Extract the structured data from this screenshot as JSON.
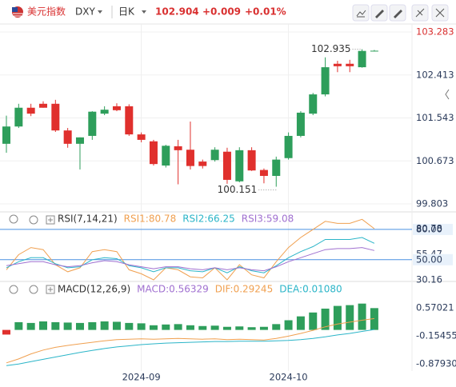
{
  "header": {
    "name": "美元指数",
    "symbol": "DXY",
    "period": "日K",
    "change": "+0.009",
    "change_pct": "+0.01%"
  },
  "chart_data": [
    {
      "type": "candlestick",
      "up_color": "#2e9e5b",
      "down_color": "#e0302d",
      "categories": [
        null,
        null,
        null,
        null,
        null,
        null,
        null,
        null,
        null,
        null,
        null,
        "2024-09",
        null,
        null,
        null,
        null,
        null,
        null,
        null,
        null,
        null,
        null,
        null,
        "2024-10",
        null,
        null,
        null,
        null,
        null,
        null,
        null
      ],
      "candles": [
        {
          "open": 101.02,
          "high": 101.59,
          "low": 100.84,
          "close": 101.37
        },
        {
          "open": 101.37,
          "high": 101.83,
          "low": 101.34,
          "close": 101.75
        },
        {
          "open": 101.75,
          "high": 101.83,
          "low": 101.58,
          "close": 101.63
        },
        {
          "open": 101.83,
          "high": 101.88,
          "low": 101.75,
          "close": 101.75
        },
        {
          "open": 101.83,
          "high": 101.91,
          "low": 101.26,
          "close": 101.29
        },
        {
          "open": 101.29,
          "high": 101.34,
          "low": 100.94,
          "close": 101.02
        },
        {
          "open": 101.02,
          "high": 101.15,
          "low": 100.5,
          "close": 101.15
        },
        {
          "open": 101.18,
          "high": 101.68,
          "low": 101.1,
          "close": 101.67
        },
        {
          "open": 101.63,
          "high": 101.78,
          "low": 101.6,
          "close": 101.71
        },
        {
          "open": 101.78,
          "high": 101.84,
          "low": 101.68,
          "close": 101.7
        },
        {
          "open": 101.78,
          "high": 101.82,
          "low": 101.18,
          "close": 101.21
        },
        {
          "open": 101.21,
          "high": 101.25,
          "low": 101.05,
          "close": 101.1
        },
        {
          "open": 101.07,
          "high": 101.1,
          "low": 100.58,
          "close": 100.61
        },
        {
          "open": 100.58,
          "high": 101.0,
          "low": 100.54,
          "close": 100.98
        },
        {
          "open": 100.97,
          "high": 101.1,
          "low": 100.2,
          "close": 100.89
        },
        {
          "open": 100.9,
          "high": 101.47,
          "low": 100.5,
          "close": 100.57
        },
        {
          "open": 100.66,
          "high": 100.7,
          "low": 100.52,
          "close": 100.57
        },
        {
          "open": 100.69,
          "high": 100.95,
          "low": 100.66,
          "close": 100.9
        },
        {
          "open": 100.86,
          "high": 100.94,
          "low": 100.21,
          "close": 100.29
        },
        {
          "open": 100.26,
          "high": 100.95,
          "low": 100.24,
          "close": 100.89
        },
        {
          "open": 100.89,
          "high": 100.95,
          "low": 100.47,
          "close": 100.48
        },
        {
          "open": 100.49,
          "high": 100.52,
          "low": 100.22,
          "close": 100.37
        },
        {
          "open": 100.37,
          "high": 100.76,
          "low": 100.151,
          "close": 100.7
        },
        {
          "open": 100.73,
          "high": 101.25,
          "low": 100.7,
          "close": 101.18
        },
        {
          "open": 101.18,
          "high": 101.68,
          "low": 101.15,
          "close": 101.65
        },
        {
          "open": 101.63,
          "high": 102.05,
          "low": 101.6,
          "close": 102.02
        },
        {
          "open": 102.02,
          "high": 102.77,
          "low": 101.98,
          "close": 102.57
        },
        {
          "open": 102.64,
          "high": 102.7,
          "low": 102.47,
          "close": 102.59
        },
        {
          "open": 102.64,
          "high": 102.72,
          "low": 102.47,
          "close": 102.59
        },
        {
          "open": 102.57,
          "high": 102.935,
          "low": 102.56,
          "close": 102.9
        },
        {
          "open": 102.9,
          "high": 102.92,
          "low": 102.89,
          "close": 102.904
        }
      ],
      "ylim": [
        99.69,
        103.413
      ],
      "yticks": [
        103.283,
        102.413,
        101.543,
        100.673,
        99.803
      ],
      "grid": true
    },
    {
      "type": "line",
      "title": "RSI(7,14,21)",
      "ylim": [
        30,
        85.5
      ],
      "yticks": [
        {
          "value": 80,
          "label": "80.00",
          "line": true
        },
        80.78,
        55.47,
        {
          "value": 50,
          "label": "50.00",
          "line": true
        },
        30.16
      ],
      "series": [
        {
          "name": "RSI1:80.78",
          "color": "#f0a050",
          "values": [
            40,
            55,
            62,
            60,
            45,
            38,
            42,
            58,
            60,
            58,
            40,
            36,
            30,
            42,
            40,
            33,
            32,
            42,
            30,
            45,
            35,
            32,
            48,
            62,
            72,
            80,
            88,
            86,
            86,
            90,
            80.78
          ]
        },
        {
          "name": "RSI2:66.25",
          "color": "#2bb5c8",
          "values": [
            42,
            48,
            52,
            52,
            46,
            42,
            43,
            50,
            52,
            51,
            44,
            42,
            38,
            42,
            42,
            39,
            38,
            42,
            37,
            43,
            39,
            37,
            44,
            52,
            58,
            63,
            70,
            70,
            70,
            72,
            66.25
          ]
        },
        {
          "name": "RSI3:59.08",
          "color": "#a070d0",
          "values": [
            44,
            46,
            48,
            48,
            45,
            43,
            44,
            47,
            49,
            48,
            45,
            43,
            41,
            43,
            43,
            41,
            40,
            42,
            40,
            42,
            40,
            39,
            43,
            48,
            52,
            56,
            60,
            61,
            61,
            62,
            59.08
          ]
        }
      ]
    },
    {
      "type": "bar",
      "title": "MACD(12,26,9)",
      "ylim": [
        -1.02,
        0.88
      ],
      "yticks": [
        0.57021,
        -0.15455,
        {
          "value": -0.8793,
          "label": "-0.87930"
        }
      ],
      "series": [
        {
          "name": "MACD:0.56329",
          "kind": "bar",
          "color": "#a070d0",
          "up_color": "#2e9e5b",
          "down_color": "#e0302d",
          "values": [
            -0.12,
            0.2,
            0.18,
            0.22,
            0.2,
            0.19,
            0.18,
            0.2,
            0.22,
            0.21,
            0.18,
            0.17,
            0.12,
            0.14,
            0.15,
            0.12,
            0.1,
            0.11,
            0.08,
            0.09,
            0.07,
            0.08,
            0.15,
            0.25,
            0.35,
            0.45,
            0.55,
            0.62,
            0.64,
            0.68,
            0.56329
          ]
        },
        {
          "name": "DIF:0.29245",
          "kind": "line",
          "color": "#f0a050",
          "values": [
            -0.85,
            -0.75,
            -0.62,
            -0.52,
            -0.45,
            -0.4,
            -0.36,
            -0.32,
            -0.28,
            -0.25,
            -0.24,
            -0.23,
            -0.24,
            -0.23,
            -0.22,
            -0.23,
            -0.24,
            -0.23,
            -0.25,
            -0.24,
            -0.25,
            -0.26,
            -0.22,
            -0.16,
            -0.09,
            -0.01,
            0.08,
            0.15,
            0.2,
            0.25,
            0.29245
          ]
        },
        {
          "name": "DEA:0.01080",
          "kind": "line",
          "color": "#2bb5c8",
          "values": [
            -0.92,
            -0.88,
            -0.82,
            -0.76,
            -0.7,
            -0.64,
            -0.58,
            -0.53,
            -0.48,
            -0.44,
            -0.41,
            -0.38,
            -0.36,
            -0.34,
            -0.33,
            -0.32,
            -0.31,
            -0.3,
            -0.3,
            -0.29,
            -0.29,
            -0.29,
            -0.28,
            -0.27,
            -0.25,
            -0.22,
            -0.18,
            -0.13,
            -0.09,
            -0.04,
            0.0108
          ]
        }
      ]
    }
  ]
}
